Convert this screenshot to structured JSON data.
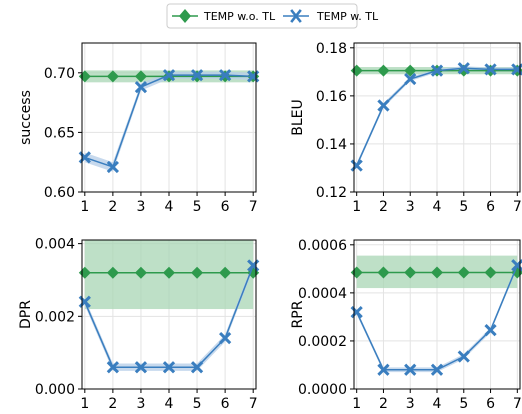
{
  "legend": {
    "items": [
      {
        "label": "TEMP w.o. TL",
        "color": "#2e9a4d",
        "marker": "diamond"
      },
      {
        "label": "TEMP w. TL",
        "color": "#3a7ebf",
        "marker": "x"
      }
    ],
    "placement": "top-center"
  },
  "colors": {
    "green": "#2e9a4d",
    "green_band": "#a8d5b4",
    "blue": "#3a7ebf",
    "blue_band": "#b9cfe8"
  },
  "chart_data": [
    {
      "type": "line",
      "ylabel": "success",
      "x": [
        1,
        2,
        3,
        4,
        5,
        6,
        7
      ],
      "xlim": [
        0.9,
        7.1
      ],
      "ylim": [
        0.6,
        0.725
      ],
      "yticks": [
        0.6,
        0.65,
        0.7
      ],
      "ytick_labels": [
        "0.60",
        "0.65",
        "0.70"
      ],
      "grid": true,
      "series": [
        {
          "name": "TEMP w.o. TL",
          "values": [
            0.697,
            0.697,
            0.697,
            0.697,
            0.697,
            0.697,
            0.697
          ],
          "band": [
            0.692,
            0.702
          ]
        },
        {
          "name": "TEMP w. TL",
          "values": [
            0.629,
            0.621,
            0.688,
            0.698,
            0.698,
            0.698,
            0.697
          ],
          "band_width": [
            0.004,
            0.004,
            0.003,
            0.003,
            0.003,
            0.003,
            0.003
          ]
        }
      ]
    },
    {
      "type": "line",
      "ylabel": "BLEU",
      "x": [
        1,
        2,
        3,
        4,
        5,
        6,
        7
      ],
      "xlim": [
        0.9,
        7.1
      ],
      "ylim": [
        0.12,
        0.182
      ],
      "yticks": [
        0.12,
        0.14,
        0.16,
        0.18
      ],
      "ytick_labels": [
        "0.12",
        "0.14",
        "0.16",
        "0.18"
      ],
      "grid": true,
      "series": [
        {
          "name": "TEMP w.o. TL",
          "values": [
            0.1705,
            0.1705,
            0.1705,
            0.1705,
            0.1705,
            0.1705,
            0.1705
          ],
          "band": [
            0.169,
            0.172
          ]
        },
        {
          "name": "TEMP w. TL",
          "values": [
            0.131,
            0.156,
            0.167,
            0.1705,
            0.1715,
            0.171,
            0.171
          ],
          "band_width": [
            0.001,
            0.001,
            0.0008,
            0.0008,
            0.0008,
            0.0008,
            0.0008
          ]
        }
      ]
    },
    {
      "type": "line",
      "ylabel": "DPR",
      "x": [
        1,
        2,
        3,
        4,
        5,
        6,
        7
      ],
      "xlim": [
        0.9,
        7.1
      ],
      "ylim": [
        0,
        0.0041
      ],
      "yticks": [
        0,
        0.002,
        0.004
      ],
      "ytick_labels": [
        "0.000",
        "0.002",
        "0.004"
      ],
      "grid": true,
      "series": [
        {
          "name": "TEMP w.o. TL",
          "values": [
            0.0032,
            0.0032,
            0.0032,
            0.0032,
            0.0032,
            0.0032,
            0.0032
          ],
          "band": [
            0.0022,
            0.0041
          ]
        },
        {
          "name": "TEMP w. TL",
          "values": [
            0.0024,
            0.0006,
            0.0006,
            0.0006,
            0.0006,
            0.0014,
            0.0034
          ],
          "band_width": [
            0.0001,
            0.0001,
            0.0001,
            0.0001,
            0.0001,
            0.0001,
            0.0001
          ]
        }
      ]
    },
    {
      "type": "line",
      "ylabel": "RPR",
      "x": [
        1,
        2,
        3,
        4,
        5,
        6,
        7
      ],
      "xlim": [
        0.9,
        7.1
      ],
      "ylim": [
        0,
        0.00062
      ],
      "yticks": [
        0,
        0.0002,
        0.0004,
        0.0006
      ],
      "ytick_labels": [
        "0.0000",
        "0.0002",
        "0.0004",
        "0.0006"
      ],
      "grid": true,
      "series": [
        {
          "name": "TEMP w.o. TL",
          "values": [
            0.000485,
            0.000485,
            0.000485,
            0.000485,
            0.000485,
            0.000485,
            0.000485
          ],
          "band": [
            0.00042,
            0.000555
          ]
        },
        {
          "name": "TEMP w. TL",
          "values": [
            0.00032,
            8e-05,
            8e-05,
            8e-05,
            0.000135,
            0.000245,
            0.000515
          ],
          "band_width": [
            1e-05,
            1e-05,
            1e-05,
            1e-05,
            1e-05,
            1e-05,
            1e-05
          ]
        }
      ]
    }
  ]
}
